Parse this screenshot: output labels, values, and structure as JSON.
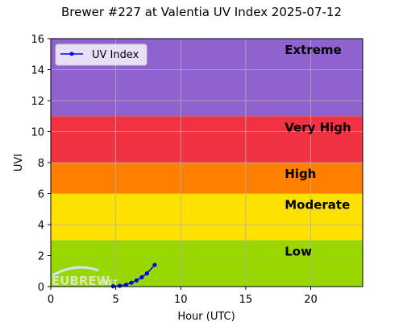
{
  "chart_data": {
    "type": "line",
    "title": "Brewer #227 at Valentia UV Index 2025-07-12",
    "xlabel": "Hour (UTC)",
    "ylabel": "UVI",
    "xlim": [
      0,
      24
    ],
    "ylim": [
      0,
      16
    ],
    "xticks": [
      0,
      5,
      10,
      15,
      20
    ],
    "yticks": [
      0,
      2,
      4,
      6,
      8,
      10,
      12,
      14,
      16
    ],
    "grid": true,
    "legend_position": "upper-left",
    "bands": [
      {
        "label": "Low",
        "from": 0,
        "to": 3,
        "color": "#99d700"
      },
      {
        "label": "Moderate",
        "from": 3,
        "to": 6,
        "color": "#ffe100"
      },
      {
        "label": "High",
        "from": 6,
        "to": 8,
        "color": "#ff7f00"
      },
      {
        "label": "Very High",
        "from": 8,
        "to": 11,
        "color": "#f03242"
      },
      {
        "label": "Extreme",
        "from": 11,
        "to": 16,
        "color": "#9062cf"
      }
    ],
    "band_label_x": 18,
    "series": [
      {
        "name": "UV Index",
        "color": "#0000ff",
        "x": [
          4.8,
          5.3,
          5.8,
          6.2,
          6.6,
          7.0,
          7.4,
          8.0
        ],
        "y": [
          0.02,
          0.05,
          0.12,
          0.25,
          0.4,
          0.6,
          0.85,
          1.4
        ]
      }
    ]
  },
  "watermark": {
    "text": "EUBREW",
    "suffix": ".NET"
  }
}
